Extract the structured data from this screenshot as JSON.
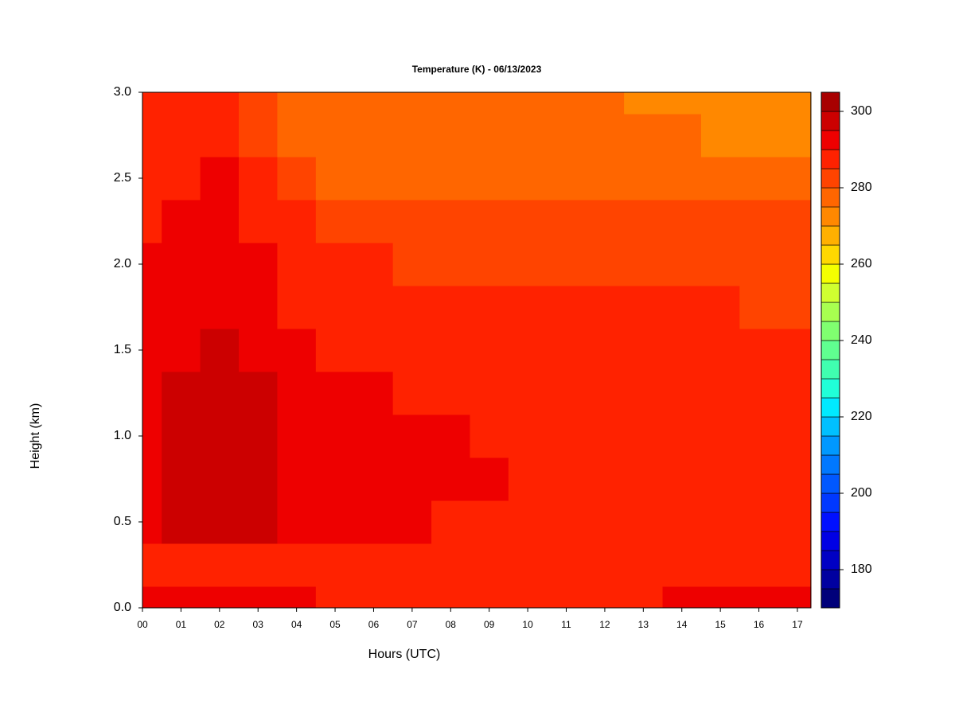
{
  "chart_data": {
    "type": "contourf",
    "title": "Temperature (K) - 06/13/2023",
    "xlabel": "Hours (UTC)",
    "ylabel": "Height (km)",
    "x": [
      0,
      1,
      2,
      3,
      4,
      5,
      6,
      7,
      8,
      9,
      10,
      11,
      12,
      13,
      14,
      15,
      16,
      17
    ],
    "y": [
      0,
      0.25,
      0.5,
      0.75,
      1.0,
      1.25,
      1.5,
      1.75,
      2.0,
      2.25,
      2.5,
      2.75,
      3.0
    ],
    "z": [
      [
        292,
        292,
        292,
        292,
        292,
        287,
        287,
        287,
        287,
        287,
        287,
        287,
        287,
        287,
        292,
        292,
        292,
        292
      ],
      [
        287,
        287,
        287,
        287,
        287,
        287,
        287,
        287,
        287,
        287,
        287,
        287,
        287,
        287,
        287,
        287,
        287,
        287
      ],
      [
        292,
        297,
        297,
        297,
        292,
        292,
        292,
        292,
        287,
        287,
        287,
        287,
        287,
        287,
        287,
        287,
        287,
        287
      ],
      [
        292,
        297,
        297,
        297,
        292,
        292,
        292,
        292,
        292,
        292,
        287,
        287,
        287,
        287,
        287,
        287,
        287,
        287
      ],
      [
        292,
        297,
        297,
        297,
        292,
        292,
        292,
        292,
        292,
        287,
        287,
        287,
        287,
        287,
        287,
        287,
        287,
        287
      ],
      [
        292,
        297,
        297,
        297,
        292,
        292,
        292,
        287,
        287,
        287,
        287,
        287,
        287,
        287,
        287,
        287,
        287,
        287
      ],
      [
        292,
        292,
        297,
        292,
        292,
        287,
        287,
        287,
        287,
        287,
        287,
        287,
        287,
        287,
        287,
        287,
        287,
        287
      ],
      [
        292,
        292,
        292,
        292,
        287,
        287,
        287,
        287,
        287,
        287,
        287,
        287,
        287,
        287,
        287,
        287,
        282,
        282
      ],
      [
        292,
        292,
        292,
        292,
        287,
        287,
        287,
        282,
        282,
        282,
        282,
        282,
        282,
        282,
        282,
        282,
        282,
        282
      ],
      [
        287,
        292,
        292,
        287,
        287,
        282,
        282,
        282,
        282,
        282,
        282,
        282,
        282,
        282,
        282,
        282,
        282,
        282
      ],
      [
        287,
        287,
        292,
        287,
        282,
        277,
        277,
        277,
        277,
        277,
        277,
        277,
        277,
        277,
        277,
        277,
        277,
        277
      ],
      [
        287,
        287,
        287,
        282,
        277,
        277,
        277,
        277,
        277,
        277,
        277,
        277,
        277,
        277,
        277,
        272,
        272,
        272
      ],
      [
        287,
        287,
        287,
        282,
        277,
        277,
        277,
        277,
        277,
        277,
        277,
        277,
        277,
        272,
        272,
        272,
        272,
        272
      ]
    ],
    "xlim": [
      0,
      17.35
    ],
    "ylim": [
      0,
      3
    ],
    "xticks": [
      {
        "value": 0,
        "label": "00"
      },
      {
        "value": 1,
        "label": "01"
      },
      {
        "value": 2,
        "label": "02"
      },
      {
        "value": 3,
        "label": "03"
      },
      {
        "value": 4,
        "label": "04"
      },
      {
        "value": 5,
        "label": "05"
      },
      {
        "value": 6,
        "label": "06"
      },
      {
        "value": 7,
        "label": "07"
      },
      {
        "value": 8,
        "label": "08"
      },
      {
        "value": 9,
        "label": "09"
      },
      {
        "value": 10,
        "label": "10"
      },
      {
        "value": 11,
        "label": "11"
      },
      {
        "value": 12,
        "label": "12"
      },
      {
        "value": 13,
        "label": "13"
      },
      {
        "value": 14,
        "label": "14"
      },
      {
        "value": 15,
        "label": "15"
      },
      {
        "value": 16,
        "label": "16"
      },
      {
        "value": 17,
        "label": "17"
      }
    ],
    "yticks": [
      {
        "value": 0,
        "label": "0.0"
      },
      0.5,
      {
        "value": 1,
        "label": "1.0"
      },
      1.5,
      {
        "value": 2,
        "label": "2.0"
      },
      2.5,
      {
        "value": 3,
        "label": "3.0"
      }
    ],
    "levels": [
      170,
      175,
      180,
      185,
      190,
      195,
      200,
      205,
      210,
      215,
      220,
      225,
      230,
      235,
      240,
      245,
      250,
      255,
      260,
      265,
      270,
      275,
      280,
      285,
      290,
      295,
      300,
      305
    ],
    "colors": [
      "#00007a",
      "#0000a0",
      "#0000c4",
      "#0000e4",
      "#0010ff",
      "#0038ff",
      "#0058ff",
      "#0078ff",
      "#0098ff",
      "#00c0ff",
      "#00eaff",
      "#20ffd8",
      "#40ffb0",
      "#60ff90",
      "#80ff70",
      "#a8ff50",
      "#d0ff30",
      "#f4ff00",
      "#ffd800",
      "#ffb000",
      "#ff8800",
      "#ff6600",
      "#ff4400",
      "#ff2200",
      "#ee0000",
      "#cc0000",
      "#a80000"
    ],
    "colorbar_ticks": [
      180,
      200,
      220,
      240,
      260,
      280,
      300
    ]
  }
}
